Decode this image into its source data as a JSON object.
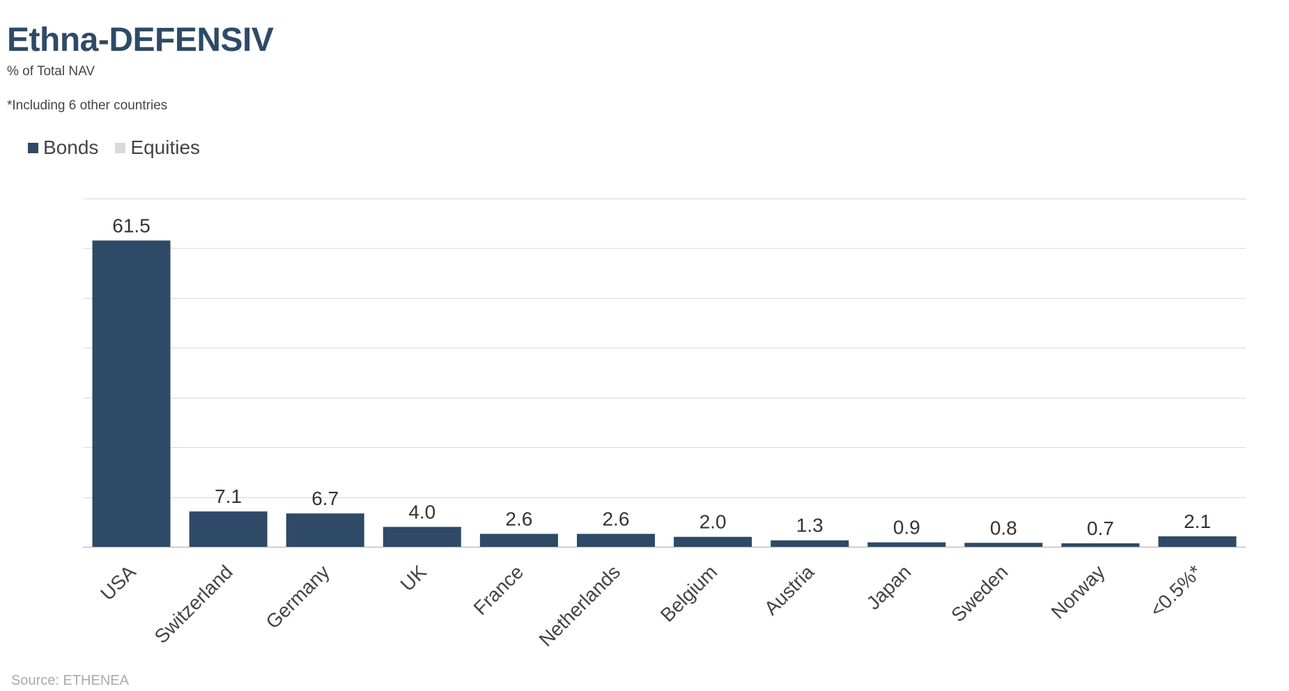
{
  "header": {
    "title": "Ethna-DEFENSIV",
    "subtitle": "% of Total NAV",
    "footnote": "*Including 6 other countries"
  },
  "legend": {
    "position": "top-left",
    "items": [
      {
        "label": "Bonds",
        "color": "#2e4a66"
      },
      {
        "label": "Equities",
        "color": "#d9d9d9"
      }
    ]
  },
  "footer": {
    "source": "Source: ETHENEA"
  },
  "chart_data": {
    "type": "bar",
    "title": "Ethna-DEFENSIV",
    "subtitle": "% of Total NAV",
    "categories": [
      "USA",
      "Switzerland",
      "Germany",
      "UK",
      "France",
      "Netherlands",
      "Belgium",
      "Austria",
      "Japan",
      "Sweden",
      "Norway",
      "<0.5%*"
    ],
    "series": [
      {
        "name": "Bonds",
        "color": "#2e4a66",
        "values": [
          61.5,
          7.1,
          6.7,
          4.0,
          2.6,
          2.6,
          2.0,
          1.3,
          0.9,
          0.8,
          0.7,
          2.1
        ]
      },
      {
        "name": "Equities",
        "color": "#d9d9d9",
        "values": [
          0,
          0,
          0,
          0,
          0,
          0,
          0,
          0,
          0,
          0,
          0,
          0
        ]
      }
    ],
    "data_labels": [
      "61.5",
      "7.1",
      "6.7",
      "4.0",
      "2.6",
      "2.6",
      "2.0",
      "1.3",
      "0.9",
      "0.8",
      "0.7",
      "2.1"
    ],
    "ylim": [
      0,
      70
    ],
    "ytick_step": 10,
    "grid": true,
    "y_axis_labels_visible": false,
    "xlabel": "",
    "ylabel": ""
  }
}
